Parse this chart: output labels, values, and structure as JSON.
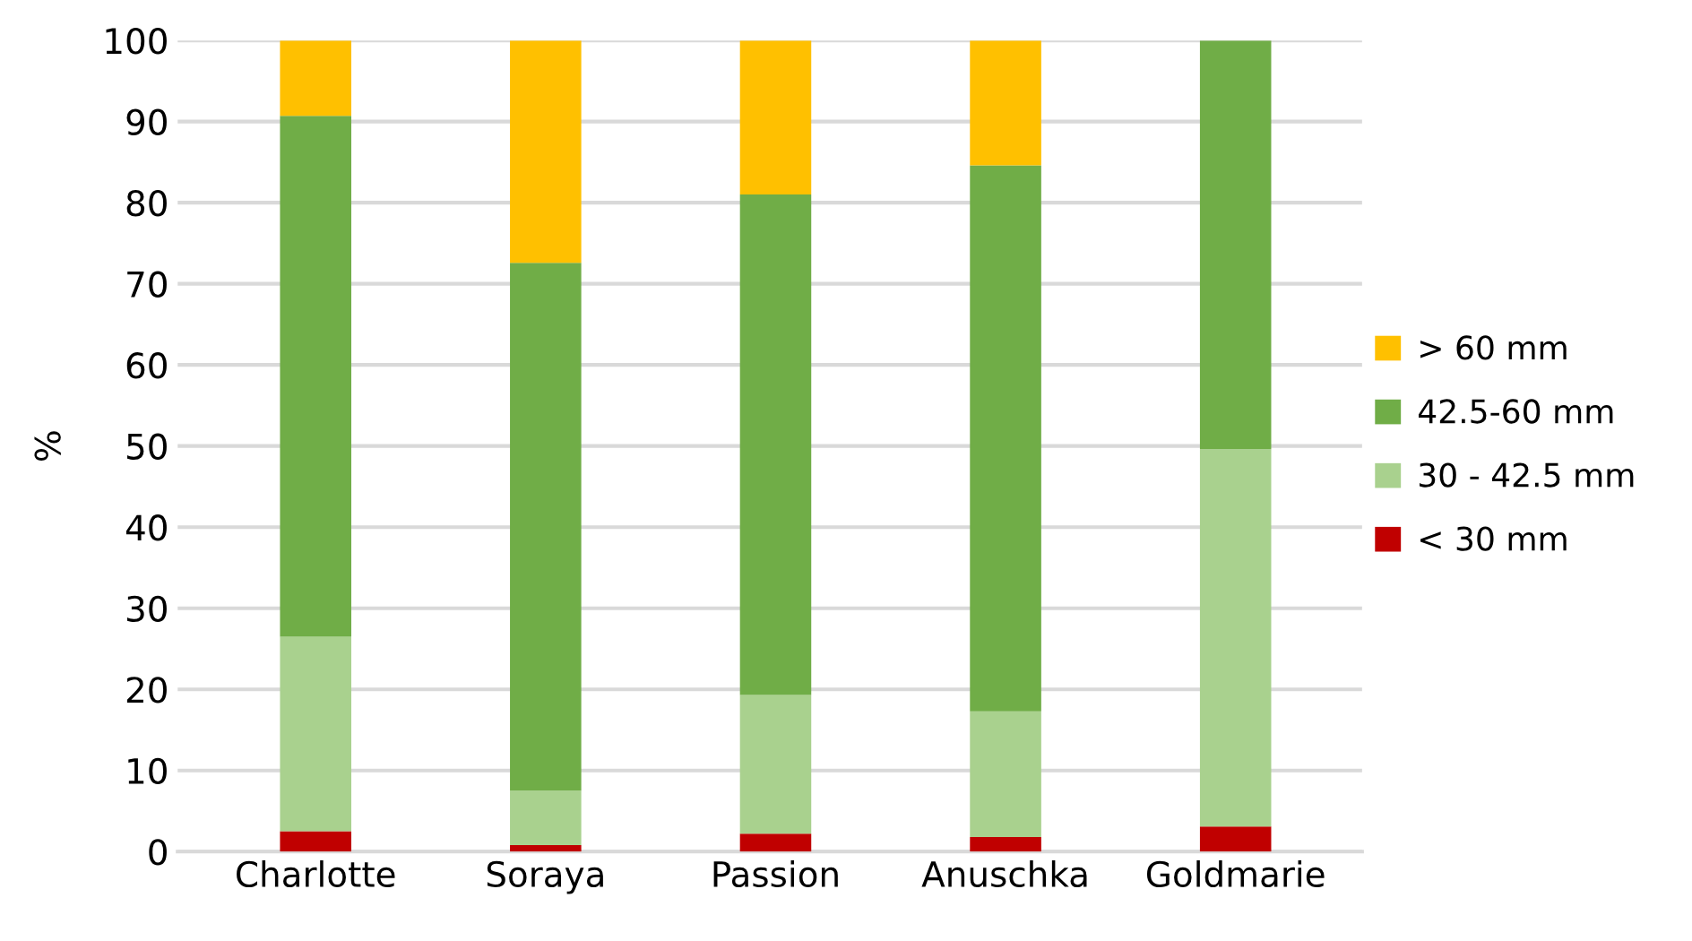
{
  "chart_data": {
    "type": "bar",
    "stacked": true,
    "ylabel": "%",
    "categories": [
      "Charlotte",
      "Soraya",
      "Passion",
      "Anuschka",
      "Goldmarie"
    ],
    "series": [
      {
        "name": "< 30 mm",
        "color": "#c00000",
        "values": [
          2.5,
          0.8,
          2.2,
          1.8,
          3.1
        ]
      },
      {
        "name": "30 - 42.5 mm",
        "color": "#a9d18e",
        "values": [
          24,
          6.7,
          17.1,
          15.5,
          46.5
        ]
      },
      {
        "name": "42.5-60 mm",
        "color": "#70ad47",
        "values": [
          64.2,
          65.1,
          61.7,
          67.3,
          50.4
        ]
      },
      {
        "name": "> 60 mm",
        "color": "#ffc000",
        "values": [
          9.3,
          27.4,
          19,
          15.4,
          0
        ]
      }
    ],
    "ylim": [
      0,
      100
    ],
    "yticks": [
      0,
      10,
      20,
      30,
      40,
      50,
      60,
      70,
      80,
      90,
      100
    ],
    "grid": "y",
    "legend": "right"
  }
}
